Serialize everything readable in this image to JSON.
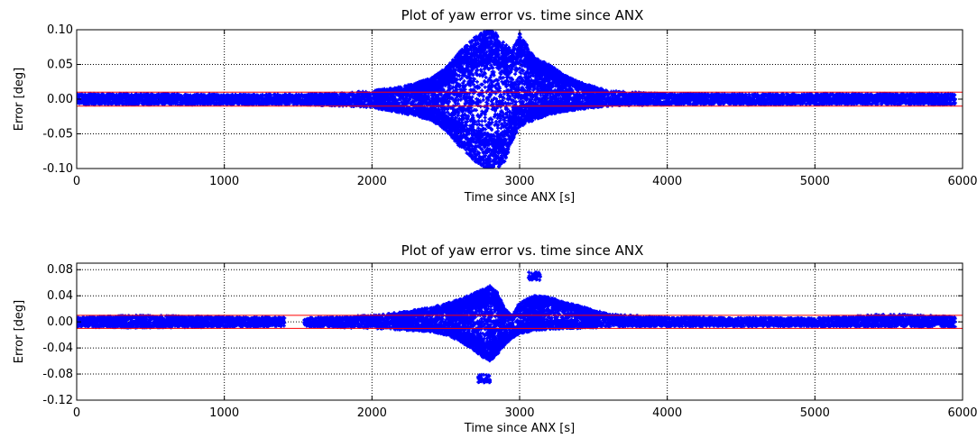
{
  "chart_data": [
    {
      "type": "scatter",
      "title": "Plot of yaw error vs. time since ANX",
      "xlabel": "Time since ANX [s]",
      "ylabel": "Error [deg]",
      "xlim": [
        0,
        6000
      ],
      "ylim": [
        -0.1,
        0.1
      ],
      "xticks": [
        0,
        1000,
        2000,
        3000,
        4000,
        5000,
        6000
      ],
      "xtick_labels": [
        "0",
        "1000",
        "2000",
        "3000",
        "4000",
        "5000",
        "6000"
      ],
      "yticks": [
        -0.1,
        -0.05,
        0.0,
        0.05,
        0.1
      ],
      "ytick_labels": [
        "-0.10",
        "-0.05",
        "0.00",
        "0.05",
        "0.10"
      ],
      "grid": true,
      "series": [
        {
          "color": "#0000ff",
          "envelope": {
            "t": [
              0,
              500,
              1000,
              1500,
              1800,
              2000,
              2200,
              2400,
              2500,
              2600,
              2700,
              2780,
              2800,
              2850,
              2900,
              2950,
              3000,
              3100,
              3200,
              3300,
              3400,
              3600,
              4000,
              5000,
              5950
            ],
            "upper": [
              0.008,
              0.008,
              0.007,
              0.007,
              0.009,
              0.012,
              0.018,
              0.03,
              0.045,
              0.07,
              0.09,
              0.1,
              0.1,
              0.095,
              0.08,
              0.07,
              0.095,
              0.06,
              0.05,
              0.035,
              0.025,
              0.012,
              0.008,
              0.008,
              0.008
            ],
            "lower": [
              -0.008,
              -0.008,
              -0.008,
              -0.008,
              -0.01,
              -0.012,
              -0.02,
              -0.03,
              -0.045,
              -0.07,
              -0.09,
              -0.1,
              -0.1,
              -0.1,
              -0.09,
              -0.06,
              -0.04,
              -0.03,
              -0.022,
              -0.018,
              -0.015,
              -0.01,
              -0.008,
              -0.008,
              -0.008
            ]
          }
        },
        {
          "color": "#ff0000",
          "type": "hline",
          "values": [
            0.01,
            -0.01
          ]
        }
      ]
    },
    {
      "type": "scatter",
      "title": "Plot of yaw error vs. time since ANX",
      "xlabel": "Time since ANX [s]",
      "ylabel": "Error [deg]",
      "xlim": [
        0,
        6000
      ],
      "ylim": [
        -0.12,
        0.09
      ],
      "xticks": [
        0,
        1000,
        2000,
        3000,
        4000,
        5000,
        6000
      ],
      "xtick_labels": [
        "0",
        "1000",
        "2000",
        "3000",
        "4000",
        "5000",
        "6000"
      ],
      "yticks": [
        -0.12,
        -0.08,
        -0.04,
        0.0,
        0.04,
        0.08
      ],
      "ytick_labels": [
        "-0.12",
        "-0.08",
        "-0.04",
        "0.00",
        "0.04",
        "0.08"
      ],
      "grid": true,
      "series": [
        {
          "color": "#0000ff",
          "envelope": {
            "t": [
              0,
              400,
              1000,
              1400,
              1550,
              2000,
              2200,
              2400,
              2500,
              2600,
              2700,
              2750,
              2800,
              2850,
              2900,
              2950,
              3000,
              3100,
              3200,
              3300,
              3400,
              3600,
              4000,
              5000,
              5500,
              5950
            ],
            "upper": [
              0.007,
              0.01,
              0.008,
              0.007,
              0.006,
              0.01,
              0.015,
              0.022,
              0.028,
              0.035,
              0.045,
              0.05,
              0.055,
              0.045,
              0.02,
              0.01,
              0.03,
              0.04,
              0.038,
              0.03,
              0.025,
              0.012,
              0.007,
              0.006,
              0.012,
              0.008
            ],
            "lower": [
              -0.008,
              -0.009,
              -0.008,
              -0.007,
              -0.007,
              -0.01,
              -0.012,
              -0.015,
              -0.02,
              -0.03,
              -0.045,
              -0.055,
              -0.06,
              -0.05,
              -0.035,
              -0.025,
              -0.018,
              -0.013,
              -0.011,
              -0.01,
              -0.01,
              -0.008,
              -0.007,
              -0.007,
              -0.008,
              -0.008
            ]
          },
          "gaps": [
            [
              1410,
              1540
            ]
          ],
          "clusters": [
            {
              "x": 2760,
              "y": -0.087
            },
            {
              "x": 3100,
              "y": 0.07
            }
          ]
        },
        {
          "color": "#ff0000",
          "type": "hline",
          "values": [
            0.01,
            -0.01
          ]
        }
      ]
    }
  ]
}
